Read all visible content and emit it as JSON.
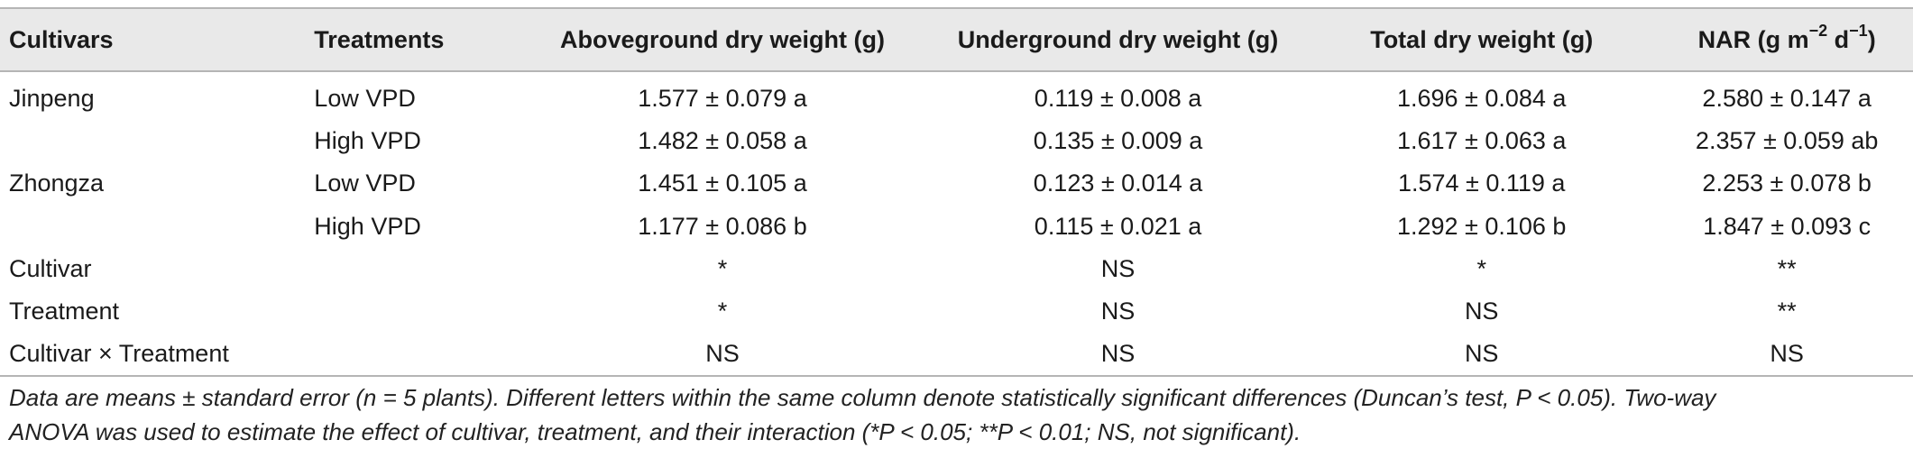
{
  "headers": {
    "cultivars": "Cultivars",
    "treatments": "Treatments",
    "aboveground": "Aboveground dry weight (g)",
    "underground": "Underground dry weight (g)",
    "total": "Total dry weight (g)",
    "nar_prefix": "NAR (g m",
    "nar_exp1": "−2",
    "nar_mid": " d",
    "nar_exp2": "−1",
    "nar_suffix": ")"
  },
  "rows": [
    {
      "cultivar": "Jinpeng",
      "treatment": "Low VPD",
      "aboveground": "1.577 ± 0.079 a",
      "underground": "0.119 ± 0.008 a",
      "total": "1.696 ± 0.084 a",
      "nar": "2.580 ± 0.147 a"
    },
    {
      "cultivar": "",
      "treatment": "High VPD",
      "aboveground": "1.482 ± 0.058 a",
      "underground": "0.135 ± 0.009 a",
      "total": "1.617 ± 0.063 a",
      "nar": "2.357 ± 0.059 ab"
    },
    {
      "cultivar": "Zhongza",
      "treatment": "Low VPD",
      "aboveground": "1.451 ± 0.105 a",
      "underground": "0.123 ± 0.014 a",
      "total": "1.574 ± 0.119 a",
      "nar": "2.253 ± 0.078 b"
    },
    {
      "cultivar": "",
      "treatment": "High VPD",
      "aboveground": "1.177 ± 0.086 b",
      "underground": "0.115 ± 0.021 a",
      "total": "1.292 ± 0.106 b",
      "nar": "1.847 ± 0.093 c"
    },
    {
      "cultivar": "Cultivar",
      "treatment": "",
      "aboveground": "*",
      "underground": "NS",
      "total": "*",
      "nar": "**"
    },
    {
      "cultivar": "Treatment",
      "treatment": "",
      "aboveground": "*",
      "underground": "NS",
      "total": "NS",
      "nar": "**"
    },
    {
      "cultivar": "Cultivar × Treatment",
      "treatment": "",
      "aboveground": "NS",
      "underground": "NS",
      "total": "NS",
      "nar": "NS"
    }
  ],
  "footnote": {
    "line1": "Data are means ± standard error (n = 5 plants). Different letters within the same column denote statistically significant differences (Duncan’s test, P < 0.05). Two-way",
    "line2": "ANOVA was used to estimate the effect of cultivar, treatment, and their interaction (*P < 0.05; **P < 0.01; NS, not significant)."
  }
}
